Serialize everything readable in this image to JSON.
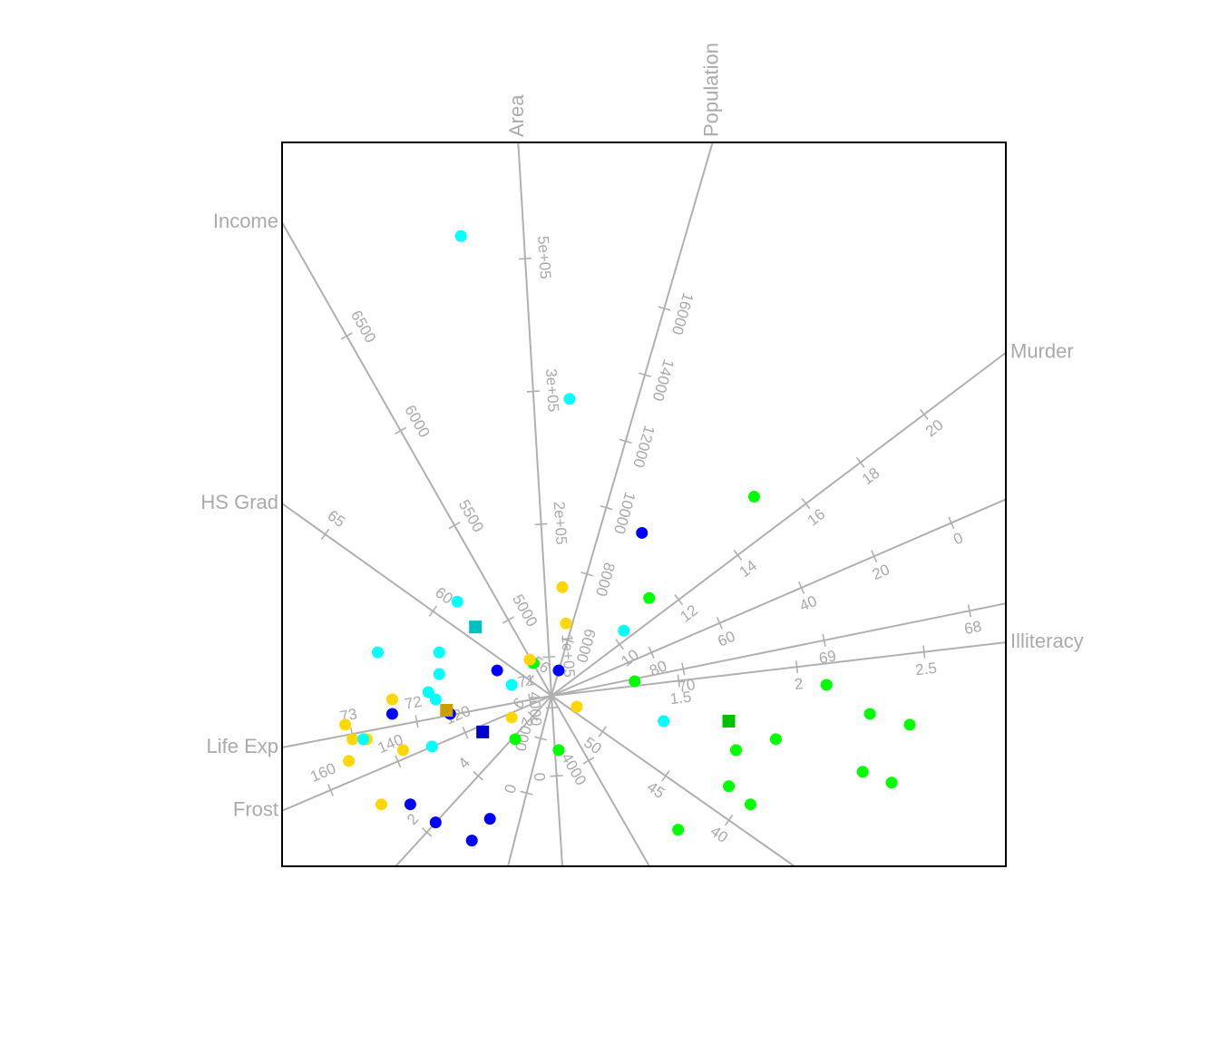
{
  "chart_data": {
    "type": "scatter",
    "title": "",
    "colors": {
      "Northeast": "#0000ff",
      "South": "#00ff00",
      "North Central": "#ffd700",
      "West": "#00ffff",
      "Northeast_centroid": "#0000cc",
      "South_centroid": "#00c000",
      "North Central_centroid": "#c8a000",
      "West_centroid": "#00c0c0",
      "axis": "#b0b0b0",
      "frame": "#000000"
    },
    "score_range": {
      "x": [
        -1.0,
        1.0
      ],
      "y": [
        -1.0,
        1.0
      ]
    },
    "variables": [
      {
        "name": "Population",
        "dir": [
          0.237,
          0.814
        ],
        "ticks": [
          {
            "label": "6000",
            "t": 0.1
          },
          {
            "label": "8000",
            "t": 0.22
          },
          {
            "label": "10000",
            "t": 0.34
          },
          {
            "label": "12000",
            "t": 0.46
          },
          {
            "label": "14000",
            "t": 0.58
          },
          {
            "label": "16000",
            "t": 0.7
          }
        ]
      },
      {
        "name": "Area",
        "dir": [
          -0.046,
          0.765
        ],
        "ticks": [
          {
            "label": "1e+05",
            "t": 0.07
          },
          {
            "label": "2e+05",
            "t": 0.31
          },
          {
            "label": "3e+05",
            "t": 0.55
          },
          {
            "label": "5e+05",
            "t": 0.79
          }
        ]
      },
      {
        "name": "Income",
        "dir": [
          -0.37,
          0.65
        ],
        "ticks": [
          {
            "label": "5000",
            "t": 0.16
          },
          {
            "label": "5500",
            "t": 0.36
          },
          {
            "label": "6000",
            "t": 0.56
          },
          {
            "label": "6500",
            "t": 0.76
          }
        ]
      },
      {
        "name": "HS Grad",
        "dir": [
          -0.37,
          0.264
        ],
        "ticks": [
          {
            "label": "56",
            "t": 0.08
          },
          {
            "label": "60",
            "t": 0.44
          },
          {
            "label": "65",
            "t": 0.84
          }
        ]
      },
      {
        "name": "Life Exp",
        "dir": [
          -0.37,
          -0.071
        ],
        "ticks": [
          {
            "label": "71",
            "t": 0.08
          },
          {
            "label": "72",
            "t": 0.5
          },
          {
            "label": "73",
            "t": 0.74
          }
        ]
      },
      {
        "name": "Frost",
        "dir": [
          -0.37,
          -0.158
        ],
        "ticks": [
          {
            "label": "120",
            "t": 0.32
          },
          {
            "label": "140",
            "t": 0.57
          },
          {
            "label": "160",
            "t": 0.82
          }
        ]
      },
      {
        "name": "Murder",
        "dir": [
          0.502,
          0.379
        ],
        "ticks": [
          {
            "label": "10",
            "t": 0.15
          },
          {
            "label": "12",
            "t": 0.28
          },
          {
            "label": "14",
            "t": 0.41
          },
          {
            "label": "16",
            "t": 0.56
          },
          {
            "label": "18",
            "t": 0.68
          },
          {
            "label": "20",
            "t": 0.82
          }
        ]
      },
      {
        "name": "Illiteracy",
        "dir": [
          0.502,
          0.059
        ],
        "ticks": [
          {
            "label": "1.5",
            "t": 0.28
          },
          {
            "label": "2",
            "t": 0.54
          },
          {
            "label": "2.5",
            "t": 0.82
          }
        ]
      }
    ],
    "extra_axes": [
      {
        "dir": [
          0.502,
          0.217
        ],
        "ticks": [
          {
            "label": "80",
            "t": 0.22
          },
          {
            "label": "60",
            "t": 0.37
          },
          {
            "label": "40",
            "t": 0.55
          },
          {
            "label": "20",
            "t": 0.71
          },
          {
            "label": "0",
            "t": 0.88
          }
        ]
      },
      {
        "dir": [
          0.502,
          0.102
        ],
        "ticks": [
          {
            "label": "70",
            "t": 0.29
          },
          {
            "label": "69",
            "t": 0.6
          },
          {
            "label": "68",
            "t": 0.92
          }
        ]
      },
      {
        "dir": [
          -0.37,
          -0.405
        ],
        "ticks": [
          {
            "label": "6",
            "t": 0.12
          },
          {
            "label": "4",
            "t": 0.47
          },
          {
            "label": "2",
            "t": 0.8
          }
        ]
      },
      {
        "dir": [
          -0.12,
          -0.47
        ],
        "ticks": [
          {
            "label": "2000",
            "t": 0.25
          },
          {
            "label": "0",
            "t": 0.57
          }
        ]
      },
      {
        "dir": [
          0.03,
          -0.47
        ],
        "ticks": [
          {
            "label": "4000",
            "t": 0.07
          },
          {
            "label": "0",
            "t": 0.47
          }
        ]
      },
      {
        "dir": [
          0.27,
          -0.47
        ],
        "ticks": [
          {
            "label": "4000",
            "t": 0.38
          }
        ]
      },
      {
        "dir": [
          0.67,
          -0.47
        ],
        "ticks": [
          {
            "label": "50",
            "t": 0.21
          },
          {
            "label": "45",
            "t": 0.47
          },
          {
            "label": "40",
            "t": 0.73
          }
        ]
      }
    ],
    "series": [
      {
        "name": "Northeast",
        "points": [
          [
            0.25,
            0.45
          ],
          [
            0.02,
            0.07
          ],
          [
            -0.15,
            0.07
          ],
          [
            -0.28,
            -0.05
          ],
          [
            -0.44,
            -0.05
          ],
          [
            -0.39,
            -0.3
          ],
          [
            -0.32,
            -0.35
          ],
          [
            -0.17,
            -0.34
          ],
          [
            -0.22,
            -0.4
          ]
        ],
        "centroid": [
          -0.19,
          -0.1
        ]
      },
      {
        "name": "South",
        "points": [
          [
            0.56,
            0.55
          ],
          [
            0.27,
            0.27
          ],
          [
            0.23,
            0.04
          ],
          [
            -0.05,
            0.09
          ],
          [
            -0.1,
            -0.12
          ],
          [
            0.02,
            -0.15
          ],
          [
            0.76,
            0.03
          ],
          [
            0.88,
            -0.05
          ],
          [
            0.99,
            -0.08
          ],
          [
            0.62,
            -0.12
          ],
          [
            0.51,
            -0.15
          ],
          [
            0.86,
            -0.21
          ],
          [
            0.94,
            -0.24
          ],
          [
            0.49,
            -0.25
          ],
          [
            0.55,
            -0.3
          ],
          [
            0.35,
            -0.37
          ]
        ],
        "centroid": [
          0.49,
          -0.07
        ]
      },
      {
        "name": "North Central",
        "points": [
          [
            0.03,
            0.3
          ],
          [
            0.04,
            0.2
          ],
          [
            -0.06,
            0.1
          ],
          [
            0.07,
            -0.03
          ],
          [
            -0.11,
            -0.06
          ],
          [
            -0.44,
            -0.01
          ],
          [
            -0.57,
            -0.08
          ],
          [
            -0.55,
            -0.12
          ],
          [
            -0.51,
            -0.12
          ],
          [
            -0.41,
            -0.15
          ],
          [
            -0.56,
            -0.18
          ],
          [
            -0.47,
            -0.3
          ]
        ],
        "centroid": [
          -0.29,
          -0.04
        ]
      },
      {
        "name": "West",
        "points": [
          [
            -0.25,
            1.27
          ],
          [
            0.05,
            0.82
          ],
          [
            -0.26,
            0.26
          ],
          [
            0.2,
            0.18
          ],
          [
            -0.48,
            0.12
          ],
          [
            -0.31,
            0.12
          ],
          [
            -0.31,
            0.06
          ],
          [
            -0.11,
            0.03
          ],
          [
            -0.34,
            0.01
          ],
          [
            -0.32,
            -0.01
          ],
          [
            0.31,
            -0.07
          ],
          [
            -0.52,
            -0.12
          ],
          [
            -0.33,
            -0.14
          ]
        ],
        "centroid": [
          -0.21,
          0.19
        ]
      }
    ]
  }
}
